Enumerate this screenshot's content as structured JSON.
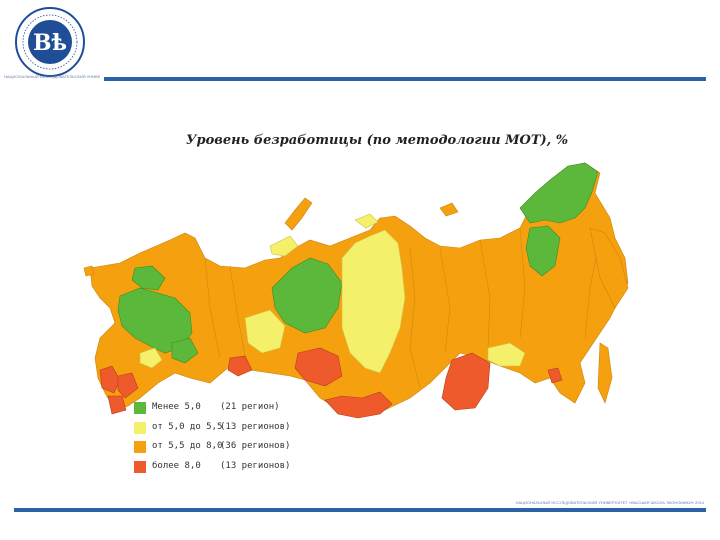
{
  "header": {
    "logo_caption": "НАЦИОНАЛЬНЫЙ ИССЛЕДОВАТЕЛЬСКИЙ УНИВЕРСИТЕТ"
  },
  "map": {
    "title": "Уровень безработицы (по методологии МОТ), %",
    "legend": [
      {
        "label": "Менее 5,0",
        "count": "(21 регион)",
        "color": "#5cb83a"
      },
      {
        "label": "от 5,0 до 5,5",
        "count": "(13 регионов)",
        "color": "#f5f06a"
      },
      {
        "label": "от 5,5 до 8,0",
        "count": "(36 регионов)",
        "color": "#f5a10f"
      },
      {
        "label": "более 8,0",
        "count": "(13 регионов)",
        "color": "#ee5a2c"
      }
    ]
  },
  "footer": {
    "text": "НАЦИОНАЛЬНЫЙ ИССЛЕДОВАТЕЛЬСКИЙ УНИВЕРСИТЕТ «ВЫСШАЯ ШКОЛА ЭКОНОМИКИ» 2014"
  }
}
